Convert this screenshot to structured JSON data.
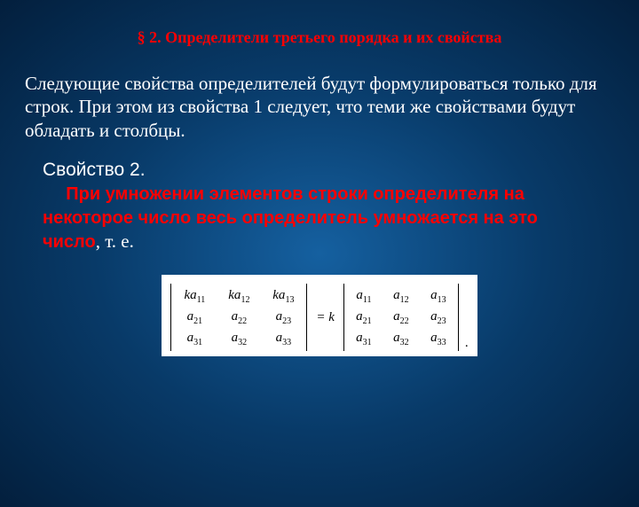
{
  "title": "§ 2. Определители третьего порядка и их свойства",
  "intro": "Следующие свойства определителей будут формулироваться только для строк. При этом из  свойства 1 следует, что теми же свойствами будут обладать и столбцы.",
  "property": {
    "label": "Свойство 2.",
    "highlight": "При умножении элементов строки определителя на некоторое число весь определитель умножается на это число",
    "tail": ", т. е."
  },
  "formula": {
    "left": {
      "rows": [
        [
          "ka_{11}",
          "ka_{12}",
          "ka_{13}"
        ],
        [
          "a_{21}",
          "a_{22}",
          "a_{23}"
        ],
        [
          "a_{31}",
          "a_{32}",
          "a_{33}"
        ]
      ]
    },
    "eq": " = k ",
    "right": {
      "rows": [
        [
          "a_{11}",
          "a_{12}",
          "a_{13}"
        ],
        [
          "a_{21}",
          "a_{22}",
          "a_{23}"
        ],
        [
          "a_{31}",
          "a_{32}",
          "a_{33}"
        ]
      ]
    },
    "period": "."
  },
  "colors": {
    "title": "#ff0000",
    "text": "#ffffff",
    "highlight": "#ff0000",
    "formula_bg": "#ffffff"
  }
}
